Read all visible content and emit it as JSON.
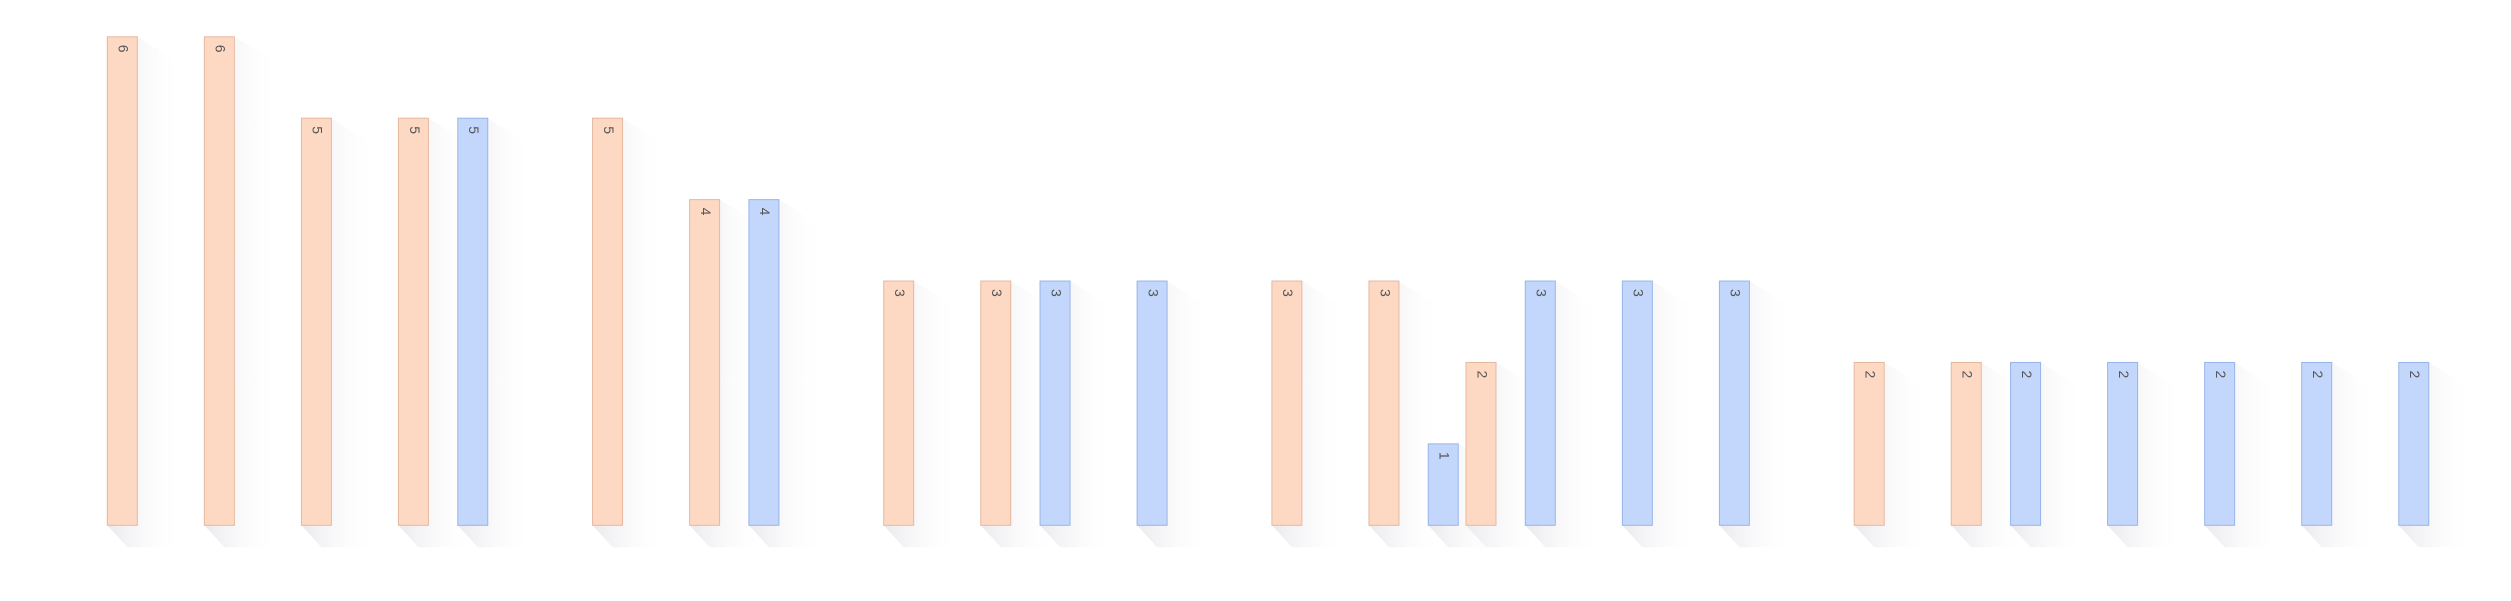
{
  "chart_data": {
    "type": "bar",
    "categories": [
      null,
      null,
      null,
      null,
      null,
      null,
      null,
      null,
      null,
      null,
      null,
      null,
      null,
      null,
      null,
      null,
      null,
      null,
      null,
      null,
      null,
      null,
      null,
      null
    ],
    "series": [
      {
        "color": "#fdd9c4",
        "values": [
          6,
          6,
          5,
          5,
          null,
          5,
          4,
          null,
          3,
          3,
          null,
          null,
          3,
          3,
          2,
          null,
          null,
          null,
          2,
          2,
          null,
          null,
          null,
          null
        ]
      },
      {
        "color": "#c2d7fb",
        "values": [
          null,
          null,
          null,
          5,
          null,
          null,
          4,
          null,
          null,
          3,
          3,
          null,
          null,
          1,
          3,
          3,
          3,
          null,
          null,
          2,
          2,
          2,
          2,
          2
        ]
      }
    ],
    "ylim": [
      0,
      6
    ]
  }
}
